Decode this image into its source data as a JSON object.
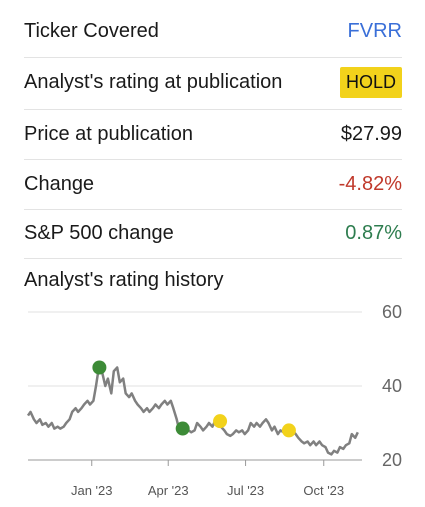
{
  "rows": {
    "ticker": {
      "label": "Ticker Covered",
      "value": "FVRR"
    },
    "rating": {
      "label": "Analyst's rating at publication",
      "value": "HOLD"
    },
    "price": {
      "label": "Price at publication",
      "value": "$27.99"
    },
    "change": {
      "label": "Change",
      "value": "-4.82%"
    },
    "sp500": {
      "label": "S&P 500 change",
      "value": "0.87%"
    }
  },
  "section_title": "Analyst's rating history",
  "colors": {
    "link": "#3a6fd8",
    "badge": "#f2d21b",
    "negative": "#c0392b",
    "positive": "#2e7d4f",
    "line": "#808080",
    "buy_marker": "#3d8b37",
    "hold_marker": "#f2d21b"
  },
  "chart_data": {
    "type": "line",
    "ylim": [
      20,
      60
    ],
    "yticks": [
      "60",
      "40",
      "20"
    ],
    "xlim": [
      "2022-10-18",
      "2023-11-15"
    ],
    "xticks": [
      {
        "label": "Jan '23",
        "date": "2023-01-01"
      },
      {
        "label": "Apr '23",
        "date": "2023-04-01"
      },
      {
        "label": "Jul '23",
        "date": "2023-07-01"
      },
      {
        "label": "Oct '23",
        "date": "2023-10-01"
      }
    ],
    "grid": true,
    "series": [
      {
        "points": [
          [
            "2022-10-18",
            32
          ],
          [
            "2022-10-21",
            33
          ],
          [
            "2022-10-25",
            31
          ],
          [
            "2022-10-28",
            30
          ],
          [
            "2022-11-01",
            31
          ],
          [
            "2022-11-04",
            29.5
          ],
          [
            "2022-11-08",
            30
          ],
          [
            "2022-11-11",
            29
          ],
          [
            "2022-11-15",
            30
          ],
          [
            "2022-11-18",
            28.5
          ],
          [
            "2022-11-22",
            29
          ],
          [
            "2022-11-25",
            28.5
          ],
          [
            "2022-11-29",
            29
          ],
          [
            "2022-12-02",
            30
          ],
          [
            "2022-12-06",
            31
          ],
          [
            "2022-12-09",
            33
          ],
          [
            "2022-12-13",
            34
          ],
          [
            "2022-12-16",
            33
          ],
          [
            "2022-12-20",
            34
          ],
          [
            "2022-12-23",
            35
          ],
          [
            "2022-12-27",
            36
          ],
          [
            "2022-12-30",
            35
          ],
          [
            "2023-01-03",
            36
          ],
          [
            "2023-01-06",
            40
          ],
          [
            "2023-01-10",
            46
          ],
          [
            "2023-01-13",
            44
          ],
          [
            "2023-01-17",
            40
          ],
          [
            "2023-01-20",
            42
          ],
          [
            "2023-01-24",
            38
          ],
          [
            "2023-01-27",
            44
          ],
          [
            "2023-01-31",
            45
          ],
          [
            "2023-02-03",
            41
          ],
          [
            "2023-02-07",
            42
          ],
          [
            "2023-02-10",
            38
          ],
          [
            "2023-02-14",
            37
          ],
          [
            "2023-02-17",
            38
          ],
          [
            "2023-02-21",
            36
          ],
          [
            "2023-02-24",
            35
          ],
          [
            "2023-02-28",
            34
          ],
          [
            "2023-03-03",
            33
          ],
          [
            "2023-03-07",
            34
          ],
          [
            "2023-03-10",
            33
          ],
          [
            "2023-03-14",
            34
          ],
          [
            "2023-03-17",
            35
          ],
          [
            "2023-03-21",
            34
          ],
          [
            "2023-03-24",
            35
          ],
          [
            "2023-03-28",
            36
          ],
          [
            "2023-03-31",
            35
          ],
          [
            "2023-04-04",
            36
          ],
          [
            "2023-04-07",
            34
          ],
          [
            "2023-04-11",
            31
          ],
          [
            "2023-04-14",
            28
          ],
          [
            "2023-04-18",
            27
          ],
          [
            "2023-04-21",
            28.5
          ],
          [
            "2023-04-25",
            28
          ],
          [
            "2023-04-28",
            27.5
          ],
          [
            "2023-05-02",
            28
          ],
          [
            "2023-05-05",
            30
          ],
          [
            "2023-05-09",
            29
          ],
          [
            "2023-05-12",
            28
          ],
          [
            "2023-05-16",
            29
          ],
          [
            "2023-05-19",
            30
          ],
          [
            "2023-05-23",
            29
          ],
          [
            "2023-05-26",
            30.5
          ],
          [
            "2023-05-30",
            30
          ],
          [
            "2023-06-02",
            29
          ],
          [
            "2023-06-06",
            28
          ],
          [
            "2023-06-09",
            27
          ],
          [
            "2023-06-13",
            26.5
          ],
          [
            "2023-06-16",
            27
          ],
          [
            "2023-06-20",
            28
          ],
          [
            "2023-06-23",
            27.5
          ],
          [
            "2023-06-27",
            28
          ],
          [
            "2023-06-30",
            27
          ],
          [
            "2023-07-04",
            28
          ],
          [
            "2023-07-07",
            30
          ],
          [
            "2023-07-11",
            29
          ],
          [
            "2023-07-14",
            30
          ],
          [
            "2023-07-18",
            29
          ],
          [
            "2023-07-21",
            30
          ],
          [
            "2023-07-25",
            31
          ],
          [
            "2023-07-28",
            30
          ],
          [
            "2023-08-01",
            28
          ],
          [
            "2023-08-04",
            29
          ],
          [
            "2023-08-08",
            27
          ],
          [
            "2023-08-11",
            28
          ],
          [
            "2023-08-15",
            27.5
          ],
          [
            "2023-08-18",
            28
          ],
          [
            "2023-08-22",
            27
          ],
          [
            "2023-08-25",
            28
          ],
          [
            "2023-08-29",
            27
          ],
          [
            "2023-09-01",
            26
          ],
          [
            "2023-09-05",
            25
          ],
          [
            "2023-09-08",
            24.5
          ],
          [
            "2023-09-12",
            25
          ],
          [
            "2023-09-15",
            24
          ],
          [
            "2023-09-19",
            25
          ],
          [
            "2023-09-22",
            24
          ],
          [
            "2023-09-26",
            25
          ],
          [
            "2023-09-29",
            24
          ],
          [
            "2023-10-03",
            23.5
          ],
          [
            "2023-10-06",
            22
          ],
          [
            "2023-10-10",
            21.5
          ],
          [
            "2023-10-13",
            22.5
          ],
          [
            "2023-10-17",
            22
          ],
          [
            "2023-10-20",
            23.5
          ],
          [
            "2023-10-24",
            23
          ],
          [
            "2023-10-27",
            24
          ],
          [
            "2023-10-31",
            24.5
          ],
          [
            "2023-11-03",
            27
          ],
          [
            "2023-11-07",
            26
          ],
          [
            "2023-11-10",
            27.5
          ]
        ]
      }
    ],
    "markers": [
      {
        "date": "2023-01-10",
        "value": 45,
        "rating": "buy"
      },
      {
        "date": "2023-04-18",
        "value": 28.5,
        "rating": "buy"
      },
      {
        "date": "2023-06-01",
        "value": 30.5,
        "rating": "hold"
      },
      {
        "date": "2023-08-21",
        "value": 28,
        "rating": "hold"
      }
    ]
  }
}
